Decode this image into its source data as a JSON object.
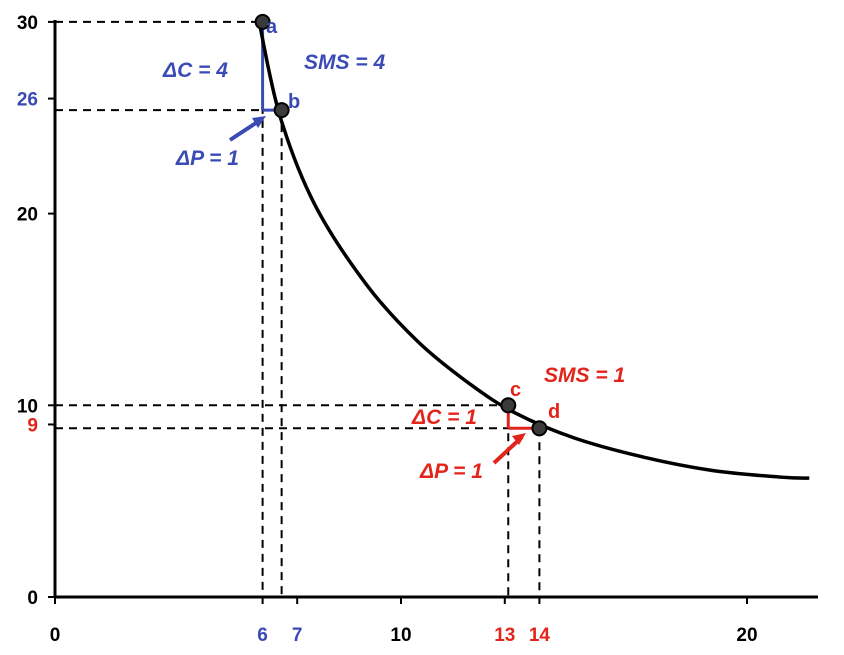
{
  "chart_data": {
    "type": "line",
    "title": "",
    "xlabel": "",
    "ylabel": "",
    "xlim": [
      0,
      22
    ],
    "ylim": [
      0,
      30
    ],
    "grid": false,
    "x_ticks": [
      {
        "value": 0,
        "label": "0",
        "color": "#000000"
      },
      {
        "value": 6,
        "label": "6",
        "color": "#3b4bb5"
      },
      {
        "value": 7,
        "label": "7",
        "color": "#3b4bb5"
      },
      {
        "value": 10,
        "label": "10",
        "color": "#000000"
      },
      {
        "value": 13,
        "label": "13",
        "color": "#e3241b"
      },
      {
        "value": 14,
        "label": "14",
        "color": "#e3241b"
      },
      {
        "value": 20,
        "label": "20",
        "color": "#000000"
      }
    ],
    "y_ticks": [
      {
        "value": 0,
        "label": "0",
        "color": "#000000"
      },
      {
        "value": 9,
        "label": "9",
        "color": "#e3241b"
      },
      {
        "value": 10,
        "label": "10",
        "color": "#000000"
      },
      {
        "value": 20,
        "label": "20",
        "color": "#000000"
      },
      {
        "value": 26,
        "label": "26",
        "color": "#3b4bb5"
      },
      {
        "value": 30,
        "label": "30",
        "color": "#000000"
      }
    ],
    "series": [
      {
        "points": [
          {
            "x": 5.9,
            "y": 30
          },
          {
            "x": 6.5,
            "y": 25.1
          },
          {
            "x": 7.5,
            "y": 20.5
          },
          {
            "x": 9.0,
            "y": 16.3
          },
          {
            "x": 10.5,
            "y": 13.3
          },
          {
            "x": 12.0,
            "y": 11.1
          },
          {
            "x": 13.3,
            "y": 9.6
          },
          {
            "x": 15.0,
            "y": 8.3
          },
          {
            "x": 17.0,
            "y": 7.3
          },
          {
            "x": 19.0,
            "y": 6.6
          },
          {
            "x": 21.0,
            "y": 6.25
          },
          {
            "x": 21.8,
            "y": 6.2
          }
        ]
      }
    ],
    "highlight_points": [
      {
        "label": "a",
        "x": 6,
        "y": 30
      },
      {
        "label": "b",
        "x": 6.55,
        "y": 25.4
      },
      {
        "label": "c",
        "x": 13.1,
        "y": 10
      },
      {
        "label": "d",
        "x": 14,
        "y": 8.8
      }
    ],
    "annotations": [
      {
        "text": "ΔC = 4",
        "color": "#3b4bb5"
      },
      {
        "text": "ΔP = 1",
        "color": "#3b4bb5"
      },
      {
        "text": "SMS = 4",
        "color": "#3b4bb5"
      },
      {
        "text": "ΔC = 1",
        "color": "#e3241b"
      },
      {
        "text": "ΔP = 1",
        "color": "#e3241b"
      },
      {
        "text": "SMS = 1",
        "color": "#e3241b"
      }
    ],
    "colors": {
      "axis": "#000000",
      "curve": "#000000",
      "blue": "#3b4bb5",
      "red": "#e3241b",
      "point_fill": "#3a3a3a"
    }
  }
}
